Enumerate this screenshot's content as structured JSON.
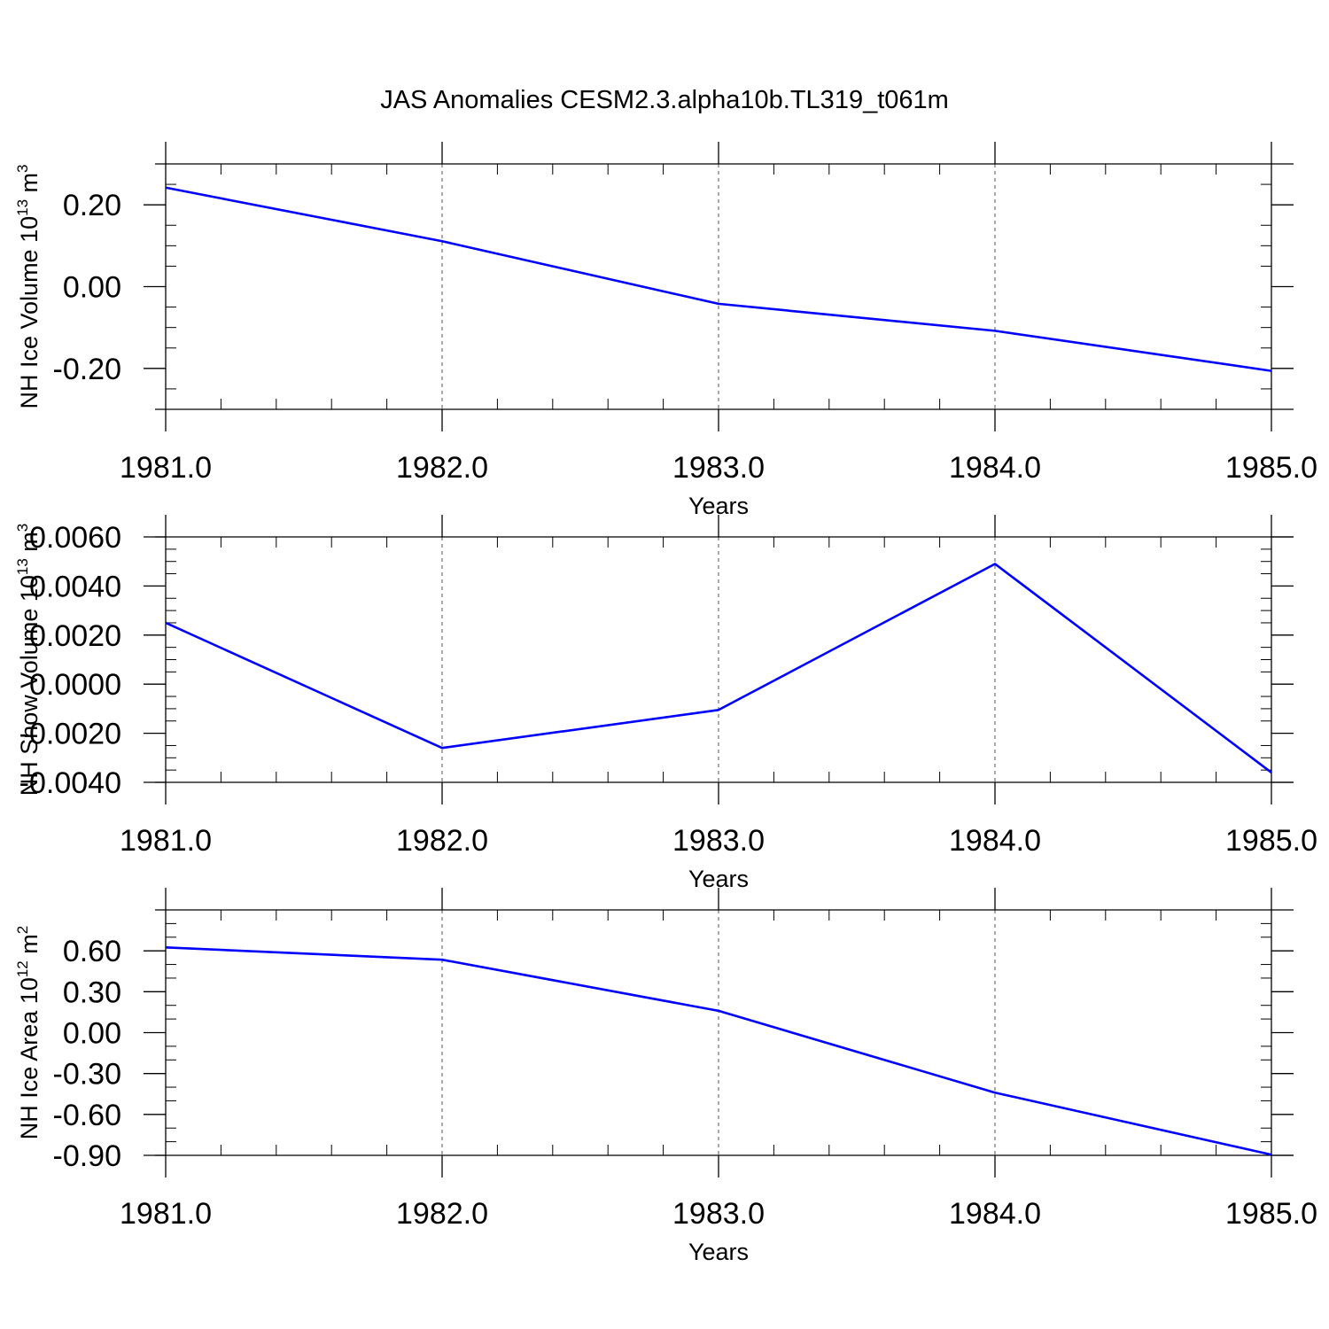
{
  "figure": {
    "title": "JAS Anomalies CESM2.3.alpha10b.TL319_t061m"
  },
  "colors": {
    "series": "#0000ff",
    "axes": "#000000",
    "grid": "#555555"
  },
  "chart_data": [
    {
      "type": "line",
      "title": "",
      "xlabel": "Years",
      "ylabel": "NH Ice Volume 10",
      "ylabel_exponent": "13",
      "ylabel_unit": " m",
      "ylabel_unit_exponent": "3",
      "xlim": [
        1981.0,
        1985.0
      ],
      "ylim": [
        -0.3,
        0.3
      ],
      "xticks": [
        1981.0,
        1982.0,
        1983.0,
        1984.0,
        1985.0
      ],
      "xtick_labels": [
        "1981.0",
        "1982.0",
        "1983.0",
        "1984.0",
        "1985.0"
      ],
      "yticks": [
        -0.2,
        0.0,
        0.2
      ],
      "ytick_labels": [
        "-0.20",
        "0.00",
        "0.20"
      ],
      "x_minor_step": 0.2,
      "y_minor_step": 0.05,
      "grid": "vertical dashed at major x ticks",
      "series": [
        {
          "x": [
            1981,
            1982,
            1983,
            1984,
            1985
          ],
          "values": [
            0.242,
            0.111,
            -0.042,
            -0.108,
            -0.206
          ]
        }
      ]
    },
    {
      "type": "line",
      "title": "",
      "xlabel": "Years",
      "ylabel": "NH Snow Volume 10",
      "ylabel_exponent": "13",
      "ylabel_unit": " m",
      "ylabel_unit_exponent": "3",
      "xlim": [
        1981.0,
        1985.0
      ],
      "ylim": [
        -0.004,
        0.006
      ],
      "xticks": [
        1981.0,
        1982.0,
        1983.0,
        1984.0,
        1985.0
      ],
      "xtick_labels": [
        "1981.0",
        "1982.0",
        "1983.0",
        "1984.0",
        "1985.0"
      ],
      "yticks": [
        -0.004,
        -0.002,
        0.0,
        0.002,
        0.004,
        0.006
      ],
      "ytick_labels": [
        "-0.0040",
        "-0.0020",
        "0.0000",
        "0.0020",
        "0.0040",
        "0.0060"
      ],
      "x_minor_step": 0.2,
      "y_minor_step": 0.0005,
      "grid": "vertical dashed at major x ticks",
      "series": [
        {
          "x": [
            1981,
            1982,
            1983,
            1984,
            1985
          ],
          "values": [
            0.0025,
            -0.0026,
            -0.00105,
            0.0049,
            -0.0036
          ]
        }
      ]
    },
    {
      "type": "line",
      "title": "",
      "xlabel": "Years",
      "ylabel": "NH Ice Area 10",
      "ylabel_exponent": "12",
      "ylabel_unit": " m",
      "ylabel_unit_exponent": "2",
      "xlim": [
        1981.0,
        1985.0
      ],
      "ylim": [
        -0.9,
        0.9
      ],
      "xticks": [
        1981.0,
        1982.0,
        1983.0,
        1984.0,
        1985.0
      ],
      "xtick_labels": [
        "1981.0",
        "1982.0",
        "1983.0",
        "1984.0",
        "1985.0"
      ],
      "yticks": [
        -0.9,
        -0.6,
        -0.3,
        0.0,
        0.3,
        0.6
      ],
      "ytick_labels": [
        "-0.90",
        "-0.60",
        "-0.30",
        "0.00",
        "0.30",
        "0.60"
      ],
      "x_minor_step": 0.2,
      "y_minor_step": 0.1,
      "grid": "vertical dashed at major x ticks",
      "series": [
        {
          "x": [
            1981,
            1982,
            1983,
            1984,
            1985
          ],
          "values": [
            0.625,
            0.535,
            0.16,
            -0.44,
            -0.895
          ]
        }
      ]
    }
  ]
}
